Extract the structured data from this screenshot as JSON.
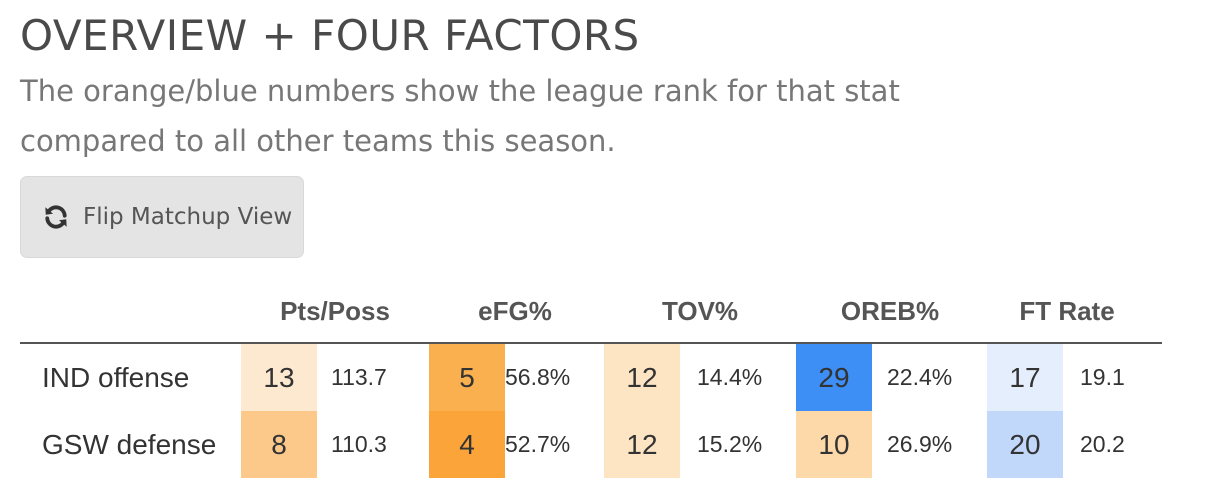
{
  "header": {
    "title": "OVERVIEW + FOUR FACTORS",
    "subtitle": "The orange/blue numbers show the league rank for that stat compared to all other teams this season."
  },
  "flip_button": {
    "label": "Flip Matchup View",
    "icon": "refresh-icon"
  },
  "table": {
    "columns": [
      "Pts/Poss",
      "eFG%",
      "TOV%",
      "OREB%",
      "FT Rate"
    ],
    "rows": [
      {
        "label": "IND offense",
        "cells": [
          {
            "rank": "13",
            "value": "113.7",
            "color": "#fde9d0"
          },
          {
            "rank": "5",
            "value": "56.8%",
            "color": "#fbb04f"
          },
          {
            "rank": "12",
            "value": "14.4%",
            "color": "#fde4c3"
          },
          {
            "rank": "29",
            "value": "22.4%",
            "color": "#3d8ef5"
          },
          {
            "rank": "17",
            "value": "19.1",
            "color": "#e4eefc"
          }
        ]
      },
      {
        "label": "GSW defense",
        "cells": [
          {
            "rank": "8",
            "value": "110.3",
            "color": "#fcc98a"
          },
          {
            "rank": "4",
            "value": "52.7%",
            "color": "#faa43a"
          },
          {
            "rank": "12",
            "value": "15.2%",
            "color": "#fde4c3"
          },
          {
            "rank": "10",
            "value": "26.9%",
            "color": "#fdd8a8"
          },
          {
            "rank": "20",
            "value": "20.2",
            "color": "#c1d8fa"
          }
        ]
      }
    ]
  }
}
